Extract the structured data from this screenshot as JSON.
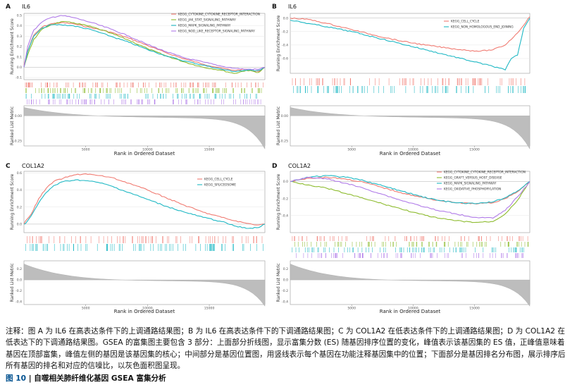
{
  "caption": {
    "note": "注释：图 A 为 IL6 在高表达条件下的上调通路结果图；B 为 IL6 在高表达条件下的下调通路结果图；C 为 COL1A2 在低表达条件下的上调通路结果图；D 为 COL1A2 在低表达下的下调通路结果图。GSEA 的富集图主要包含 3 部分：上面部分折线图，显示富集分数 (ES) 随基因排序位置的变化，峰值表示该基因集的 ES 值，正峰值意味着基因在顶部富集，峰值左侧的基因是该基因集的核心；中间部分是基因位置图，用竖线表示每个基因在功能注释基因集中的位置；下面部分是基因排名分布图，展示排序后所有基因的排名和对应的信噪比，以灰色面积图呈现。",
    "fig_num": "图 10",
    "fig_title": "自噬相关肺纤维化基因 GSEA 富集分析"
  },
  "chart_data": [
    {
      "type": "line",
      "panel": "A",
      "gene": "IL6",
      "ylabel": "Running Enrichment Score",
      "ylabel2": "Ranked List Metric",
      "xlabel": "Rank in Ordered Dataset",
      "xlim": [
        0,
        19500
      ],
      "xticks": [
        "5000",
        "10000",
        "15000"
      ],
      "ylim": [
        -0.12,
        0.52
      ],
      "yticks": [
        "0.5",
        "0.4",
        "0.3",
        "0.2",
        "0.1",
        "0.0",
        "-0.1"
      ],
      "metric_ylim": [
        -0.3,
        0.1
      ],
      "metric_yticks": [
        "0.00",
        "-0.25"
      ],
      "series": [
        {
          "name": "KEGG_CYTOKINE_CYTOKINE_RECEPTOR_INTERACTION",
          "color": "#f07b72",
          "x": [
            0,
            300,
            800,
            1500,
            2200,
            3000,
            4000,
            5500,
            7000,
            8500,
            10000,
            11500,
            13000,
            14500,
            16000,
            17000,
            18000,
            19000,
            19500
          ],
          "y": [
            0.02,
            0.16,
            0.31,
            0.39,
            0.42,
            0.43,
            0.42,
            0.38,
            0.34,
            0.28,
            0.21,
            0.14,
            0.08,
            0.03,
            -0.01,
            -0.03,
            -0.02,
            -0.04,
            0.0
          ]
        },
        {
          "name": "KEGG_JAK_STAT_SIGNALING_PATHWAY",
          "color": "#8dbb2e",
          "x": [
            0,
            300,
            800,
            1500,
            2200,
            3000,
            4000,
            5500,
            7000,
            8500,
            10000,
            11500,
            13000,
            14500,
            16000,
            17000,
            18000,
            19000,
            19500
          ],
          "y": [
            0.0,
            0.12,
            0.27,
            0.37,
            0.41,
            0.44,
            0.43,
            0.39,
            0.33,
            0.26,
            0.18,
            0.11,
            0.05,
            0.0,
            -0.03,
            -0.06,
            -0.03,
            -0.05,
            0.0
          ]
        },
        {
          "name": "KEGG_MAPK_SIGNALING_PATHWAY",
          "color": "#1fb8c4",
          "x": [
            0,
            300,
            800,
            1500,
            2200,
            3000,
            4000,
            5500,
            7000,
            8500,
            10000,
            11500,
            13000,
            14500,
            16000,
            17000,
            18000,
            19000,
            19500
          ],
          "y": [
            0.0,
            0.15,
            0.3,
            0.38,
            0.41,
            0.41,
            0.4,
            0.36,
            0.3,
            0.24,
            0.17,
            0.11,
            0.06,
            0.02,
            -0.02,
            -0.04,
            -0.03,
            -0.03,
            0.0
          ]
        },
        {
          "name": "KEGG_NOD_LIKE_RECEPTOR_SIGNALING_PATHWAY",
          "color": "#b07be8",
          "x": [
            0,
            300,
            800,
            1500,
            2200,
            3000,
            4000,
            5500,
            7000,
            8500,
            10000,
            11500,
            13000,
            14500,
            16000,
            17000,
            18000,
            19000,
            19500
          ],
          "y": [
            0.0,
            0.2,
            0.36,
            0.44,
            0.48,
            0.5,
            0.48,
            0.43,
            0.37,
            0.3,
            0.22,
            0.15,
            0.09,
            0.05,
            0.01,
            -0.01,
            -0.02,
            -0.02,
            0.0
          ]
        }
      ]
    },
    {
      "type": "line",
      "panel": "B",
      "gene": "IL6",
      "ylabel": "Running Enrichment Score",
      "ylabel2": "Ranked List Metric",
      "xlabel": "Rank in Ordered Dataset",
      "xlim": [
        0,
        19500
      ],
      "xticks": [
        "5000",
        "10000",
        "15000"
      ],
      "ylim": [
        -0.82,
        0.07
      ],
      "yticks": [
        "0.0",
        "-0.2",
        "-0.4",
        "-0.6"
      ],
      "metric_ylim": [
        -0.3,
        0.1
      ],
      "metric_yticks": [
        "0.00",
        "-0.25"
      ],
      "series": [
        {
          "name": "KEGG_CELL_CYCLE",
          "color": "#f07b72",
          "x": [
            0,
            1500,
            3000,
            5000,
            7000,
            9000,
            11000,
            13000,
            14500,
            15500,
            16500,
            17500,
            18500,
            19500
          ],
          "y": [
            0.0,
            -0.02,
            -0.08,
            -0.17,
            -0.26,
            -0.34,
            -0.4,
            -0.45,
            -0.48,
            -0.49,
            -0.47,
            -0.4,
            -0.22,
            0.02
          ]
        },
        {
          "name": "KEGG_NON_HOMOLOGOUS_END_JOINING",
          "color": "#1fb8c4",
          "x": [
            0,
            1500,
            3000,
            5000,
            7000,
            9000,
            11000,
            13000,
            15000,
            17000,
            17500,
            18000,
            18500,
            19000,
            19500
          ],
          "y": [
            -0.03,
            -0.08,
            -0.13,
            -0.2,
            -0.29,
            -0.38,
            -0.47,
            -0.56,
            -0.65,
            -0.74,
            -0.77,
            -0.6,
            -0.55,
            -0.15,
            0.0
          ]
        }
      ]
    },
    {
      "type": "line",
      "panel": "C",
      "gene": "COL1A2",
      "ylabel": "Running Enrichment Score",
      "ylabel2": "Ranked List Metric",
      "xlabel": "Rank in Ordered Dataset",
      "xlim": [
        0,
        19500
      ],
      "xticks": [
        "5000",
        "10000",
        "15000"
      ],
      "ylim": [
        -0.1,
        0.62
      ],
      "yticks": [
        "0.6",
        "0.4",
        "0.2",
        "0.0"
      ],
      "metric_ylim": [
        -0.45,
        0.35
      ],
      "metric_yticks": [
        "0.2",
        "0.0",
        "-0.2",
        "-0.4"
      ],
      "series": [
        {
          "name": "KEGG_CELL_CYCLE",
          "color": "#f07b72",
          "x": [
            0,
            200,
            600,
            1200,
            1800,
            2400,
            3200,
            4200,
            5000,
            6000,
            7000,
            8500,
            10000,
            11500,
            13000,
            14500,
            16000,
            17000,
            18000,
            19000,
            19500
          ],
          "y": [
            0.0,
            0.05,
            0.12,
            0.3,
            0.42,
            0.5,
            0.54,
            0.58,
            0.59,
            0.57,
            0.55,
            0.48,
            0.4,
            0.31,
            0.22,
            0.14,
            0.08,
            0.04,
            0.01,
            -0.01,
            0.0
          ]
        },
        {
          "name": "KEGG_SPLICEOSOME",
          "color": "#1fb8c4",
          "x": [
            0,
            200,
            600,
            1200,
            1800,
            2400,
            3200,
            4200,
            5000,
            6000,
            7000,
            8500,
            10000,
            11500,
            13000,
            14500,
            16000,
            17000,
            18000,
            19000,
            19500
          ],
          "y": [
            0.0,
            0.02,
            0.1,
            0.25,
            0.37,
            0.45,
            0.5,
            0.52,
            0.51,
            0.49,
            0.45,
            0.37,
            0.29,
            0.21,
            0.14,
            0.08,
            0.03,
            -0.02,
            -0.05,
            -0.04,
            0.0
          ]
        }
      ]
    },
    {
      "type": "line",
      "panel": "D",
      "gene": "COL1A2",
      "ylabel": "Running Enrichment Score",
      "ylabel2": "Ranked List Metric",
      "xlabel": "Rank in Ordered Dataset",
      "xlim": [
        0,
        19500
      ],
      "xticks": [
        "5000",
        "10000",
        "15000"
      ],
      "ylim": [
        -0.6,
        0.12
      ],
      "yticks": [
        "0.0",
        "-0.2",
        "-0.4"
      ],
      "metric_ylim": [
        -0.45,
        0.35
      ],
      "metric_yticks": [
        "0.2",
        "0.0",
        "-0.2",
        "-0.4"
      ],
      "series": [
        {
          "name": "KEGG_CYTOKINE_CYTOKINE_RECEPTOR_INTERACTION",
          "color": "#f07b72",
          "x": [
            0,
            1500,
            3000,
            4500,
            6000,
            7500,
            9000,
            10500,
            12000,
            13500,
            15000,
            16500,
            17500,
            18500,
            19500
          ],
          "y": [
            0.0,
            0.04,
            0.05,
            0.03,
            -0.01,
            -0.07,
            -0.13,
            -0.18,
            -0.22,
            -0.25,
            -0.26,
            -0.25,
            -0.2,
            -0.12,
            0.0
          ]
        },
        {
          "name": "KEGG_GRAFT_VERSUS_HOST_DISEASE",
          "color": "#8dbb2e",
          "x": [
            0,
            1500,
            3000,
            4500,
            6000,
            7500,
            9000,
            10500,
            12000,
            13500,
            15000,
            16500,
            17500,
            18500,
            19500
          ],
          "y": [
            0.0,
            -0.04,
            -0.08,
            -0.14,
            -0.2,
            -0.26,
            -0.32,
            -0.38,
            -0.43,
            -0.46,
            -0.48,
            -0.47,
            -0.38,
            -0.22,
            0.0
          ]
        },
        {
          "name": "KEGG_MAPK_SIGNALING_PATHWAY",
          "color": "#1fb8c4",
          "x": [
            0,
            1500,
            3000,
            4500,
            6000,
            7500,
            9000,
            10500,
            12000,
            13500,
            15000,
            16500,
            17500,
            18500,
            19500
          ],
          "y": [
            0.0,
            0.05,
            0.07,
            0.05,
            0.01,
            -0.05,
            -0.11,
            -0.17,
            -0.22,
            -0.25,
            -0.26,
            -0.24,
            -0.19,
            -0.11,
            0.0
          ]
        },
        {
          "name": "KEGG_OXIDATIVE_PHOSPHORYLATION",
          "color": "#b07be8",
          "x": [
            0,
            1500,
            3000,
            4500,
            6000,
            7500,
            9000,
            10500,
            12000,
            13500,
            15000,
            16500,
            17500,
            18500,
            19500
          ],
          "y": [
            0.0,
            0.05,
            0.03,
            -0.02,
            -0.08,
            -0.15,
            -0.22,
            -0.28,
            -0.34,
            -0.38,
            -0.42,
            -0.43,
            -0.34,
            -0.18,
            0.0
          ]
        }
      ]
    }
  ]
}
